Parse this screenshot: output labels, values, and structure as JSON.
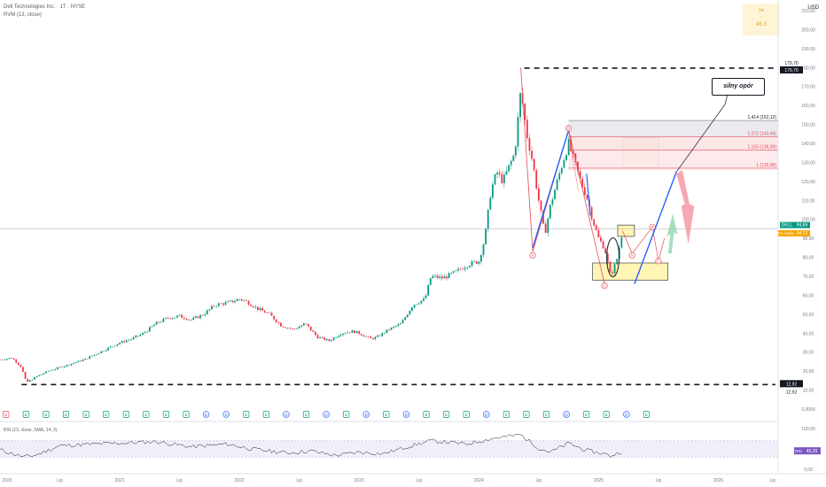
{
  "header": {
    "symbol_line": "Dell Technologies Inc. · 1T · NYSE",
    "indicator_line": "RVM (13, close)",
    "currency": "USD"
  },
  "timeframe_box": {
    "tf": "1w",
    "sep": "-",
    "value": "45.3"
  },
  "price_axis": {
    "ticks": [
      "210,00",
      "200,00",
      "190,00",
      "180,00",
      "170,00",
      "160,00",
      "150,00",
      "140,00",
      "130,00",
      "120,00",
      "110,00",
      "100,00",
      "90,00",
      "80,00",
      "70,00",
      "60,00",
      "50,00",
      "40,00",
      "30,00",
      "20,00",
      "10,00",
      "0,0000"
    ],
    "max_label": "Maksimum",
    "max_value": "179,70",
    "min_label": "Minimum",
    "min_value": "12,92",
    "dell_label": "DELL",
    "dell_value": "94,89",
    "pre_label": "Pre market",
    "pre_value": "94,72"
  },
  "fib": [
    {
      "label": "1,414 (152,12)",
      "price": 152.12
    },
    {
      "label": "1,272 (143,49)",
      "price": 143.49
    },
    {
      "label": "1,155 (136,39)",
      "price": 136.39
    },
    {
      "label": "1 (126,98)",
      "price": 126.98
    }
  ],
  "annotation": {
    "text": "silny opór"
  },
  "wave_labels": [
    {
      "text": "A",
      "x": 2024.45,
      "y": 81
    },
    {
      "text": "B",
      "x": 2024.75,
      "y": 148
    },
    {
      "text": "C",
      "x": 2025.05,
      "y": 65
    },
    {
      "text": "A",
      "x": 2025.28,
      "y": 81
    },
    {
      "text": "B",
      "x": 2025.45,
      "y": 96
    },
    {
      "text": "C",
      "x": 2025.5,
      "y": 78
    }
  ],
  "earnings_markers": [
    "E",
    "E",
    "E",
    "E",
    "E",
    "E",
    "E",
    "E",
    "E",
    "E",
    "D",
    "D",
    "E",
    "E",
    "D",
    "E",
    "D",
    "E",
    "D",
    "E",
    "D",
    "E",
    "E",
    "E",
    "D",
    "E",
    "E",
    "E",
    "D",
    "E",
    "E",
    "D",
    "E"
  ],
  "rsi": {
    "label": "RSI (13, close, SMA, 14, 2)",
    "badge": "RSI",
    "value": "45,29",
    "axis": [
      "100,00",
      "50,00",
      "0,00"
    ]
  },
  "time_axis": [
    "2020",
    "Lip",
    "2021",
    "Lip",
    "2022",
    "Lip",
    "2023",
    "Lip",
    "2024",
    "Lip",
    "2025",
    "Lip",
    "2026",
    "Lip"
  ],
  "chart_data": {
    "type": "candlestick",
    "title": "Dell Technologies Inc. · 1T · NYSE",
    "ylim": [
      0,
      210
    ],
    "x_range": [
      2020.0,
      2026.5
    ],
    "max_price": 179.7,
    "min_price": 12.92,
    "last_price": 94.89,
    "premarket_price": 94.72,
    "close_series": [
      [
        2020.0,
        26
      ],
      [
        2020.1,
        27
      ],
      [
        2020.18,
        22
      ],
      [
        2020.22,
        14
      ],
      [
        2020.3,
        17
      ],
      [
        2020.4,
        20
      ],
      [
        2020.5,
        22
      ],
      [
        2020.6,
        24
      ],
      [
        2020.7,
        26
      ],
      [
        2020.8,
        29
      ],
      [
        2020.9,
        32
      ],
      [
        2021.0,
        35
      ],
      [
        2021.1,
        37
      ],
      [
        2021.2,
        40
      ],
      [
        2021.3,
        45
      ],
      [
        2021.4,
        48
      ],
      [
        2021.5,
        49
      ],
      [
        2021.6,
        47
      ],
      [
        2021.7,
        50
      ],
      [
        2021.8,
        55
      ],
      [
        2021.9,
        56
      ],
      [
        2022.0,
        58
      ],
      [
        2022.05,
        57
      ],
      [
        2022.15,
        53
      ],
      [
        2022.25,
        50
      ],
      [
        2022.35,
        44
      ],
      [
        2022.45,
        42
      ],
      [
        2022.55,
        45
      ],
      [
        2022.65,
        38
      ],
      [
        2022.75,
        36
      ],
      [
        2022.85,
        40
      ],
      [
        2022.95,
        41
      ],
      [
        2023.0,
        40
      ],
      [
        2023.1,
        37
      ],
      [
        2023.15,
        38
      ],
      [
        2023.25,
        42
      ],
      [
        2023.35,
        45
      ],
      [
        2023.45,
        55
      ],
      [
        2023.55,
        58
      ],
      [
        2023.6,
        70
      ],
      [
        2023.7,
        69
      ],
      [
        2023.8,
        72
      ],
      [
        2023.9,
        76
      ],
      [
        2024.0,
        78
      ],
      [
        2024.05,
        90
      ],
      [
        2024.1,
        115
      ],
      [
        2024.15,
        125
      ],
      [
        2024.2,
        120
      ],
      [
        2024.3,
        135
      ],
      [
        2024.35,
        168
      ],
      [
        2024.4,
        145
      ],
      [
        2024.45,
        130
      ],
      [
        2024.5,
        110
      ],
      [
        2024.55,
        92
      ],
      [
        2024.6,
        108
      ],
      [
        2024.7,
        130
      ],
      [
        2024.75,
        140
      ],
      [
        2024.8,
        130
      ],
      [
        2024.85,
        120
      ],
      [
        2024.9,
        112
      ],
      [
        2024.95,
        100
      ],
      [
        2025.0,
        90
      ],
      [
        2025.05,
        85
      ],
      [
        2025.1,
        70
      ],
      [
        2025.15,
        78
      ],
      [
        2025.2,
        94
      ]
    ],
    "horizontal_levels": [
      179.7,
      12.92
    ],
    "zones": [
      {
        "from_x": 2025.2,
        "to_x": 2025.5,
        "y_low": 127,
        "y_high": 143
      },
      {
        "from_x": 2024.95,
        "to_x": 2025.58,
        "y_low": 68,
        "y_high": 77
      },
      {
        "from_x": 2025.16,
        "to_x": 2025.3,
        "y_low": 91,
        "y_high": 97
      }
    ],
    "rsi_series": [
      [
        2020.0,
        48
      ],
      [
        2020.2,
        30
      ],
      [
        2020.3,
        35
      ],
      [
        2020.5,
        58
      ],
      [
        2020.8,
        62
      ],
      [
        2021.0,
        64
      ],
      [
        2021.3,
        68
      ],
      [
        2021.6,
        55
      ],
      [
        2021.9,
        62
      ],
      [
        2022.1,
        50
      ],
      [
        2022.4,
        40
      ],
      [
        2022.6,
        45
      ],
      [
        2022.8,
        34
      ],
      [
        2023.0,
        42
      ],
      [
        2023.2,
        38
      ],
      [
        2023.4,
        55
      ],
      [
        2023.6,
        70
      ],
      [
        2023.9,
        62
      ],
      [
        2024.1,
        75
      ],
      [
        2024.35,
        85
      ],
      [
        2024.5,
        52
      ],
      [
        2024.6,
        42
      ],
      [
        2024.75,
        64
      ],
      [
        2024.9,
        46
      ],
      [
        2025.05,
        38
      ],
      [
        2025.1,
        32
      ],
      [
        2025.2,
        45
      ]
    ]
  }
}
